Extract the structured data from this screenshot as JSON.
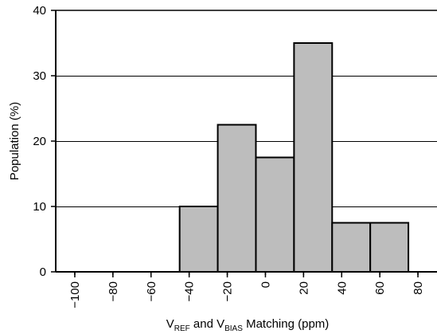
{
  "chart_data": {
    "type": "bar",
    "title": "",
    "xlabel": {
      "parts": [
        {
          "text": "V",
          "sub": false
        },
        {
          "text": "REF",
          "sub": true
        },
        {
          "text": " and V",
          "sub": false
        },
        {
          "text": "BIAS",
          "sub": true
        },
        {
          "text": " Matching (ppm)",
          "sub": false
        }
      ]
    },
    "ylabel": "Population (%)",
    "x_ticks": [
      "−100",
      "−80",
      "−60",
      "−40",
      "−20",
      "0",
      "20",
      "40",
      "60",
      "80"
    ],
    "y_ticks": [
      "0",
      "10",
      "20",
      "30",
      "40"
    ],
    "ylim": [
      0,
      40
    ],
    "y_tick_values": [
      0,
      10,
      20,
      30,
      40
    ],
    "bins": [
      {
        "from": -45,
        "to": -25,
        "value": 10
      },
      {
        "from": -25,
        "to": -5,
        "value": 22.5
      },
      {
        "from": -5,
        "to": 15,
        "value": 17.5
      },
      {
        "from": 15,
        "to": 35,
        "value": 35
      },
      {
        "from": 35,
        "to": 55,
        "value": 7.5
      },
      {
        "from": 55,
        "to": 75,
        "value": 7.5
      }
    ],
    "x_tick_values": [
      -100,
      -80,
      -60,
      -40,
      -20,
      0,
      20,
      40,
      60,
      80
    ],
    "xlim": [
      -110,
      90
    ],
    "grid": true,
    "bar_color": "#bdbdbd",
    "bar_edge_color": "#000000",
    "grid_color": "#000000"
  }
}
